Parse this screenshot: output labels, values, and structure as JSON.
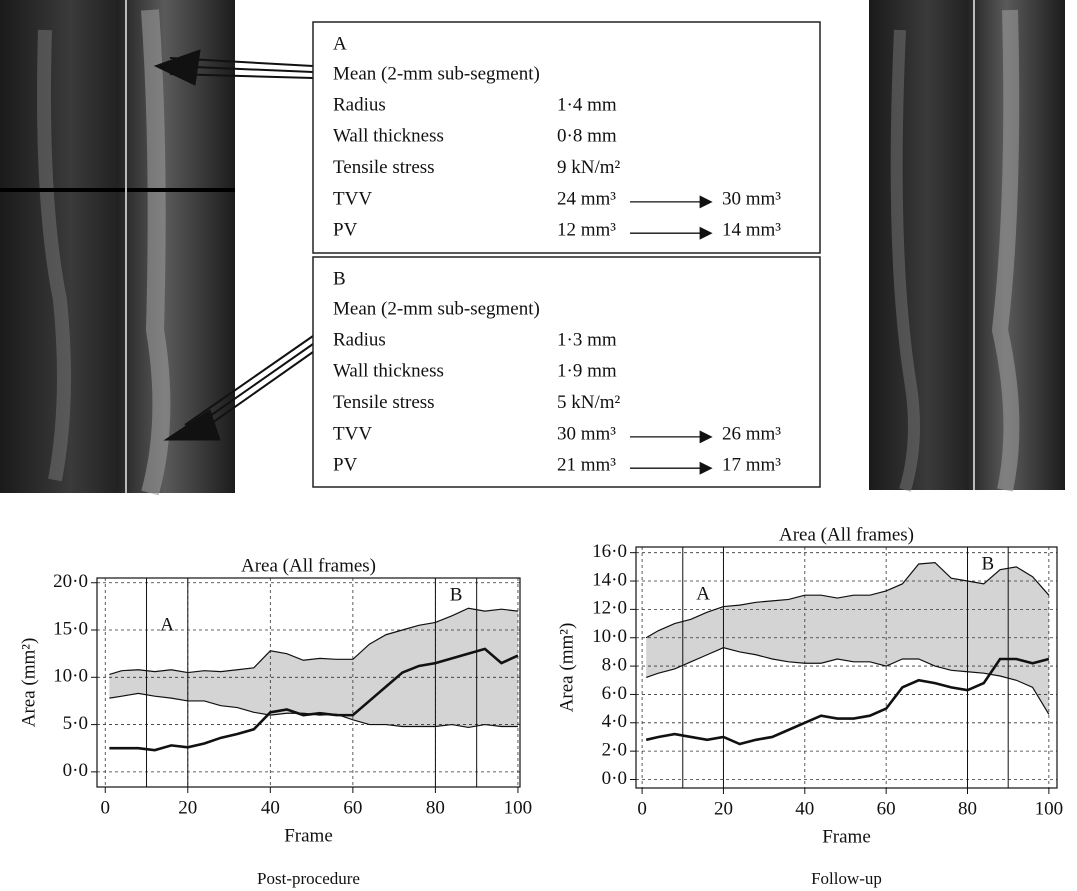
{
  "panels": [
    {
      "label": "A",
      "heading": "Mean (2-mm sub-segment)",
      "rows": [
        [
          "Radius",
          "1·4 mm"
        ],
        [
          "Wall thickness",
          "0·8 mm"
        ],
        [
          "Tensile stress",
          "9 kN/m²"
        ],
        [
          "TVV",
          "24 mm³",
          "30 mm³"
        ],
        [
          "PV",
          "12 mm³",
          "14 mm³"
        ]
      ]
    },
    {
      "label": "B",
      "heading": "Mean (2-mm sub-segment)",
      "rows": [
        [
          "Radius",
          "1·3 mm"
        ],
        [
          "Wall thickness",
          "1·9 mm"
        ],
        [
          "Tensile stress",
          "5 kN/m²"
        ],
        [
          "TVV",
          "30 mm³",
          "26 mm³"
        ],
        [
          "PV",
          "21 mm³",
          "17 mm³"
        ]
      ]
    }
  ],
  "chart_data": [
    {
      "type": "band",
      "title": "Area (All frames)",
      "x_label": "Frame",
      "y_label": "Area (mm²)",
      "caption": "Post-procedure",
      "fill": "#d4d4d4",
      "grid": true,
      "xlim": [
        -2,
        100.5
      ],
      "xticks": [
        0,
        20,
        40,
        60,
        80,
        100
      ],
      "ylim": [
        -1.6,
        20.5
      ],
      "yticks": [
        {
          "value": 0,
          "label": "0·0"
        },
        {
          "value": 5,
          "label": "5·0"
        },
        {
          "value": 10,
          "label": "10·0"
        },
        {
          "value": 15,
          "label": "15·0"
        },
        {
          "value": 20,
          "label": "20·0"
        }
      ],
      "regions": [
        {
          "label": "A",
          "from": 10,
          "to": 20
        },
        {
          "label": "B",
          "from": 80,
          "to": 90
        }
      ],
      "x": [
        1,
        4,
        8,
        12,
        16,
        20,
        24,
        28,
        32,
        36,
        40,
        44,
        48,
        52,
        56,
        60,
        64,
        68,
        72,
        76,
        80,
        84,
        88,
        92,
        96,
        100
      ],
      "series": [
        {
          "color": "#111111",
          "values": [
            10.3,
            10.7,
            10.8,
            10.6,
            10.8,
            10.5,
            10.7,
            10.6,
            10.8,
            11.0,
            12.8,
            12.5,
            11.8,
            12.0,
            11.9,
            11.9,
            13.5,
            14.5,
            15.0,
            15.5,
            15.8,
            16.5,
            17.3,
            17.0,
            17.2,
            17.0
          ]
        },
        {
          "color": "#111111",
          "values": [
            7.8,
            8.0,
            8.3,
            8.0,
            7.8,
            7.5,
            7.5,
            7.0,
            6.8,
            6.3,
            6.0,
            6.2,
            6.2,
            6.0,
            6.1,
            5.5,
            5.0,
            5.0,
            4.8,
            4.8,
            4.8,
            5.0,
            4.7,
            5.0,
            4.8,
            4.8
          ]
        },
        {
          "color": "#111111",
          "values": [
            2.5,
            2.5,
            2.5,
            2.3,
            2.8,
            2.6,
            3.0,
            3.6,
            4.0,
            4.5,
            6.3,
            6.6,
            6.0,
            6.2,
            6.0,
            6.0,
            7.5,
            9.0,
            10.5,
            11.2,
            11.5,
            12.0,
            12.5,
            13.0,
            11.5,
            12.3
          ]
        }
      ]
    },
    {
      "type": "band",
      "title": "Area (All frames)",
      "x_label": "Frame",
      "y_label": "Area (mm²)",
      "caption": "Follow-up",
      "fill": "#d4d4d4",
      "grid": true,
      "xlim": [
        -1.5,
        102
      ],
      "xticks": [
        0,
        20,
        40,
        60,
        80,
        100
      ],
      "ylim": [
        -0.6,
        16.4
      ],
      "yticks": [
        {
          "value": 0,
          "label": "0·0"
        },
        {
          "value": 2,
          "label": "2·0"
        },
        {
          "value": 4,
          "label": "4·0"
        },
        {
          "value": 6,
          "label": "6·0"
        },
        {
          "value": 8,
          "label": "8·0"
        },
        {
          "value": 10,
          "label": "10·0"
        },
        {
          "value": 12,
          "label": "12·0"
        },
        {
          "value": 14,
          "label": "14·0"
        },
        {
          "value": 16,
          "label": "16·0"
        }
      ],
      "regions": [
        {
          "label": "A",
          "from": 10,
          "to": 20
        },
        {
          "label": "B",
          "from": 80,
          "to": 90
        }
      ],
      "x": [
        1,
        4,
        8,
        12,
        16,
        20,
        24,
        28,
        32,
        36,
        40,
        44,
        48,
        52,
        56,
        60,
        64,
        68,
        72,
        76,
        80,
        84,
        88,
        92,
        96,
        100
      ],
      "series": [
        {
          "color": "#111111",
          "values": [
            10.0,
            10.5,
            11.0,
            11.3,
            11.8,
            12.2,
            12.3,
            12.5,
            12.6,
            12.7,
            13.0,
            13.0,
            12.8,
            13.0,
            13.0,
            13.3,
            13.8,
            15.2,
            15.3,
            14.2,
            14.0,
            13.8,
            14.8,
            15.0,
            14.3,
            13.0
          ]
        },
        {
          "color": "#111111",
          "values": [
            7.2,
            7.5,
            7.8,
            8.3,
            8.8,
            9.3,
            9.0,
            8.8,
            8.5,
            8.3,
            8.2,
            8.2,
            8.5,
            8.3,
            8.3,
            8.0,
            8.5,
            8.5,
            8.0,
            7.7,
            7.6,
            7.5,
            7.3,
            7.0,
            6.5,
            4.6
          ]
        },
        {
          "color": "#111111",
          "values": [
            2.8,
            3.0,
            3.2,
            3.0,
            2.8,
            3.0,
            2.5,
            2.8,
            3.0,
            3.5,
            4.0,
            4.5,
            4.3,
            4.3,
            4.5,
            5.0,
            6.5,
            7.0,
            6.8,
            6.5,
            6.3,
            6.8,
            8.5,
            8.5,
            8.2,
            8.5
          ]
        }
      ]
    }
  ]
}
